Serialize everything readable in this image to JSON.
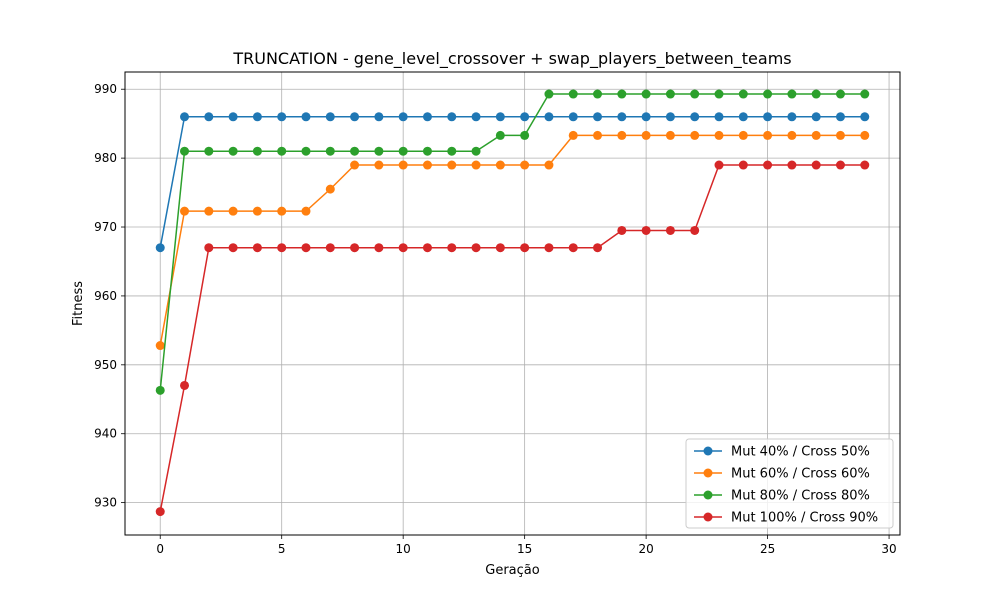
{
  "chart_data": {
    "type": "line",
    "title": "TRUNCATION - gene_level_crossover + swap_players_between_teams",
    "xlabel": "Geração",
    "ylabel": "Fitness",
    "xlim": [
      -1.45,
      30.45
    ],
    "ylim": [
      925.3,
      992.5
    ],
    "xticks": [
      0,
      5,
      10,
      15,
      20,
      25,
      30
    ],
    "yticks": [
      930,
      940,
      950,
      960,
      970,
      980,
      990
    ],
    "grid": true,
    "legend_position": "lower-right",
    "x": [
      0,
      1,
      2,
      3,
      4,
      5,
      6,
      7,
      8,
      9,
      10,
      11,
      12,
      13,
      14,
      15,
      16,
      17,
      18,
      19,
      20,
      21,
      22,
      23,
      24,
      25,
      26,
      27,
      28,
      29
    ],
    "series": [
      {
        "name": "Mut 40% / Cross 50%",
        "color": "#1f77b4",
        "values": [
          967,
          986,
          986,
          986,
          986,
          986,
          986,
          986,
          986,
          986,
          986,
          986,
          986,
          986,
          986,
          986,
          986,
          986,
          986,
          986,
          986,
          986,
          986,
          986,
          986,
          986,
          986,
          986,
          986,
          986
        ]
      },
      {
        "name": "Mut 60% / Cross 60%",
        "color": "#ff7f0e",
        "values": [
          952.8,
          972.3,
          972.3,
          972.3,
          972.3,
          972.3,
          972.3,
          975.5,
          979,
          979,
          979,
          979,
          979,
          979,
          979,
          979,
          979,
          983.3,
          983.3,
          983.3,
          983.3,
          983.3,
          983.3,
          983.3,
          983.3,
          983.3,
          983.3,
          983.3,
          983.3,
          983.3
        ]
      },
      {
        "name": "Mut 80% / Cross 80%",
        "color": "#2ca02c",
        "values": [
          946.3,
          981,
          981,
          981,
          981,
          981,
          981,
          981,
          981,
          981,
          981,
          981,
          981,
          981,
          983.3,
          983.3,
          989.3,
          989.3,
          989.3,
          989.3,
          989.3,
          989.3,
          989.3,
          989.3,
          989.3,
          989.3,
          989.3,
          989.3,
          989.3,
          989.3
        ]
      },
      {
        "name": "Mut 100% / Cross 90%",
        "color": "#d62728",
        "values": [
          928.7,
          947,
          967,
          967,
          967,
          967,
          967,
          967,
          967,
          967,
          967,
          967,
          967,
          967,
          967,
          967,
          967,
          967,
          967,
          969.5,
          969.5,
          969.5,
          969.5,
          979,
          979,
          979,
          979,
          979,
          979,
          979
        ]
      }
    ]
  }
}
